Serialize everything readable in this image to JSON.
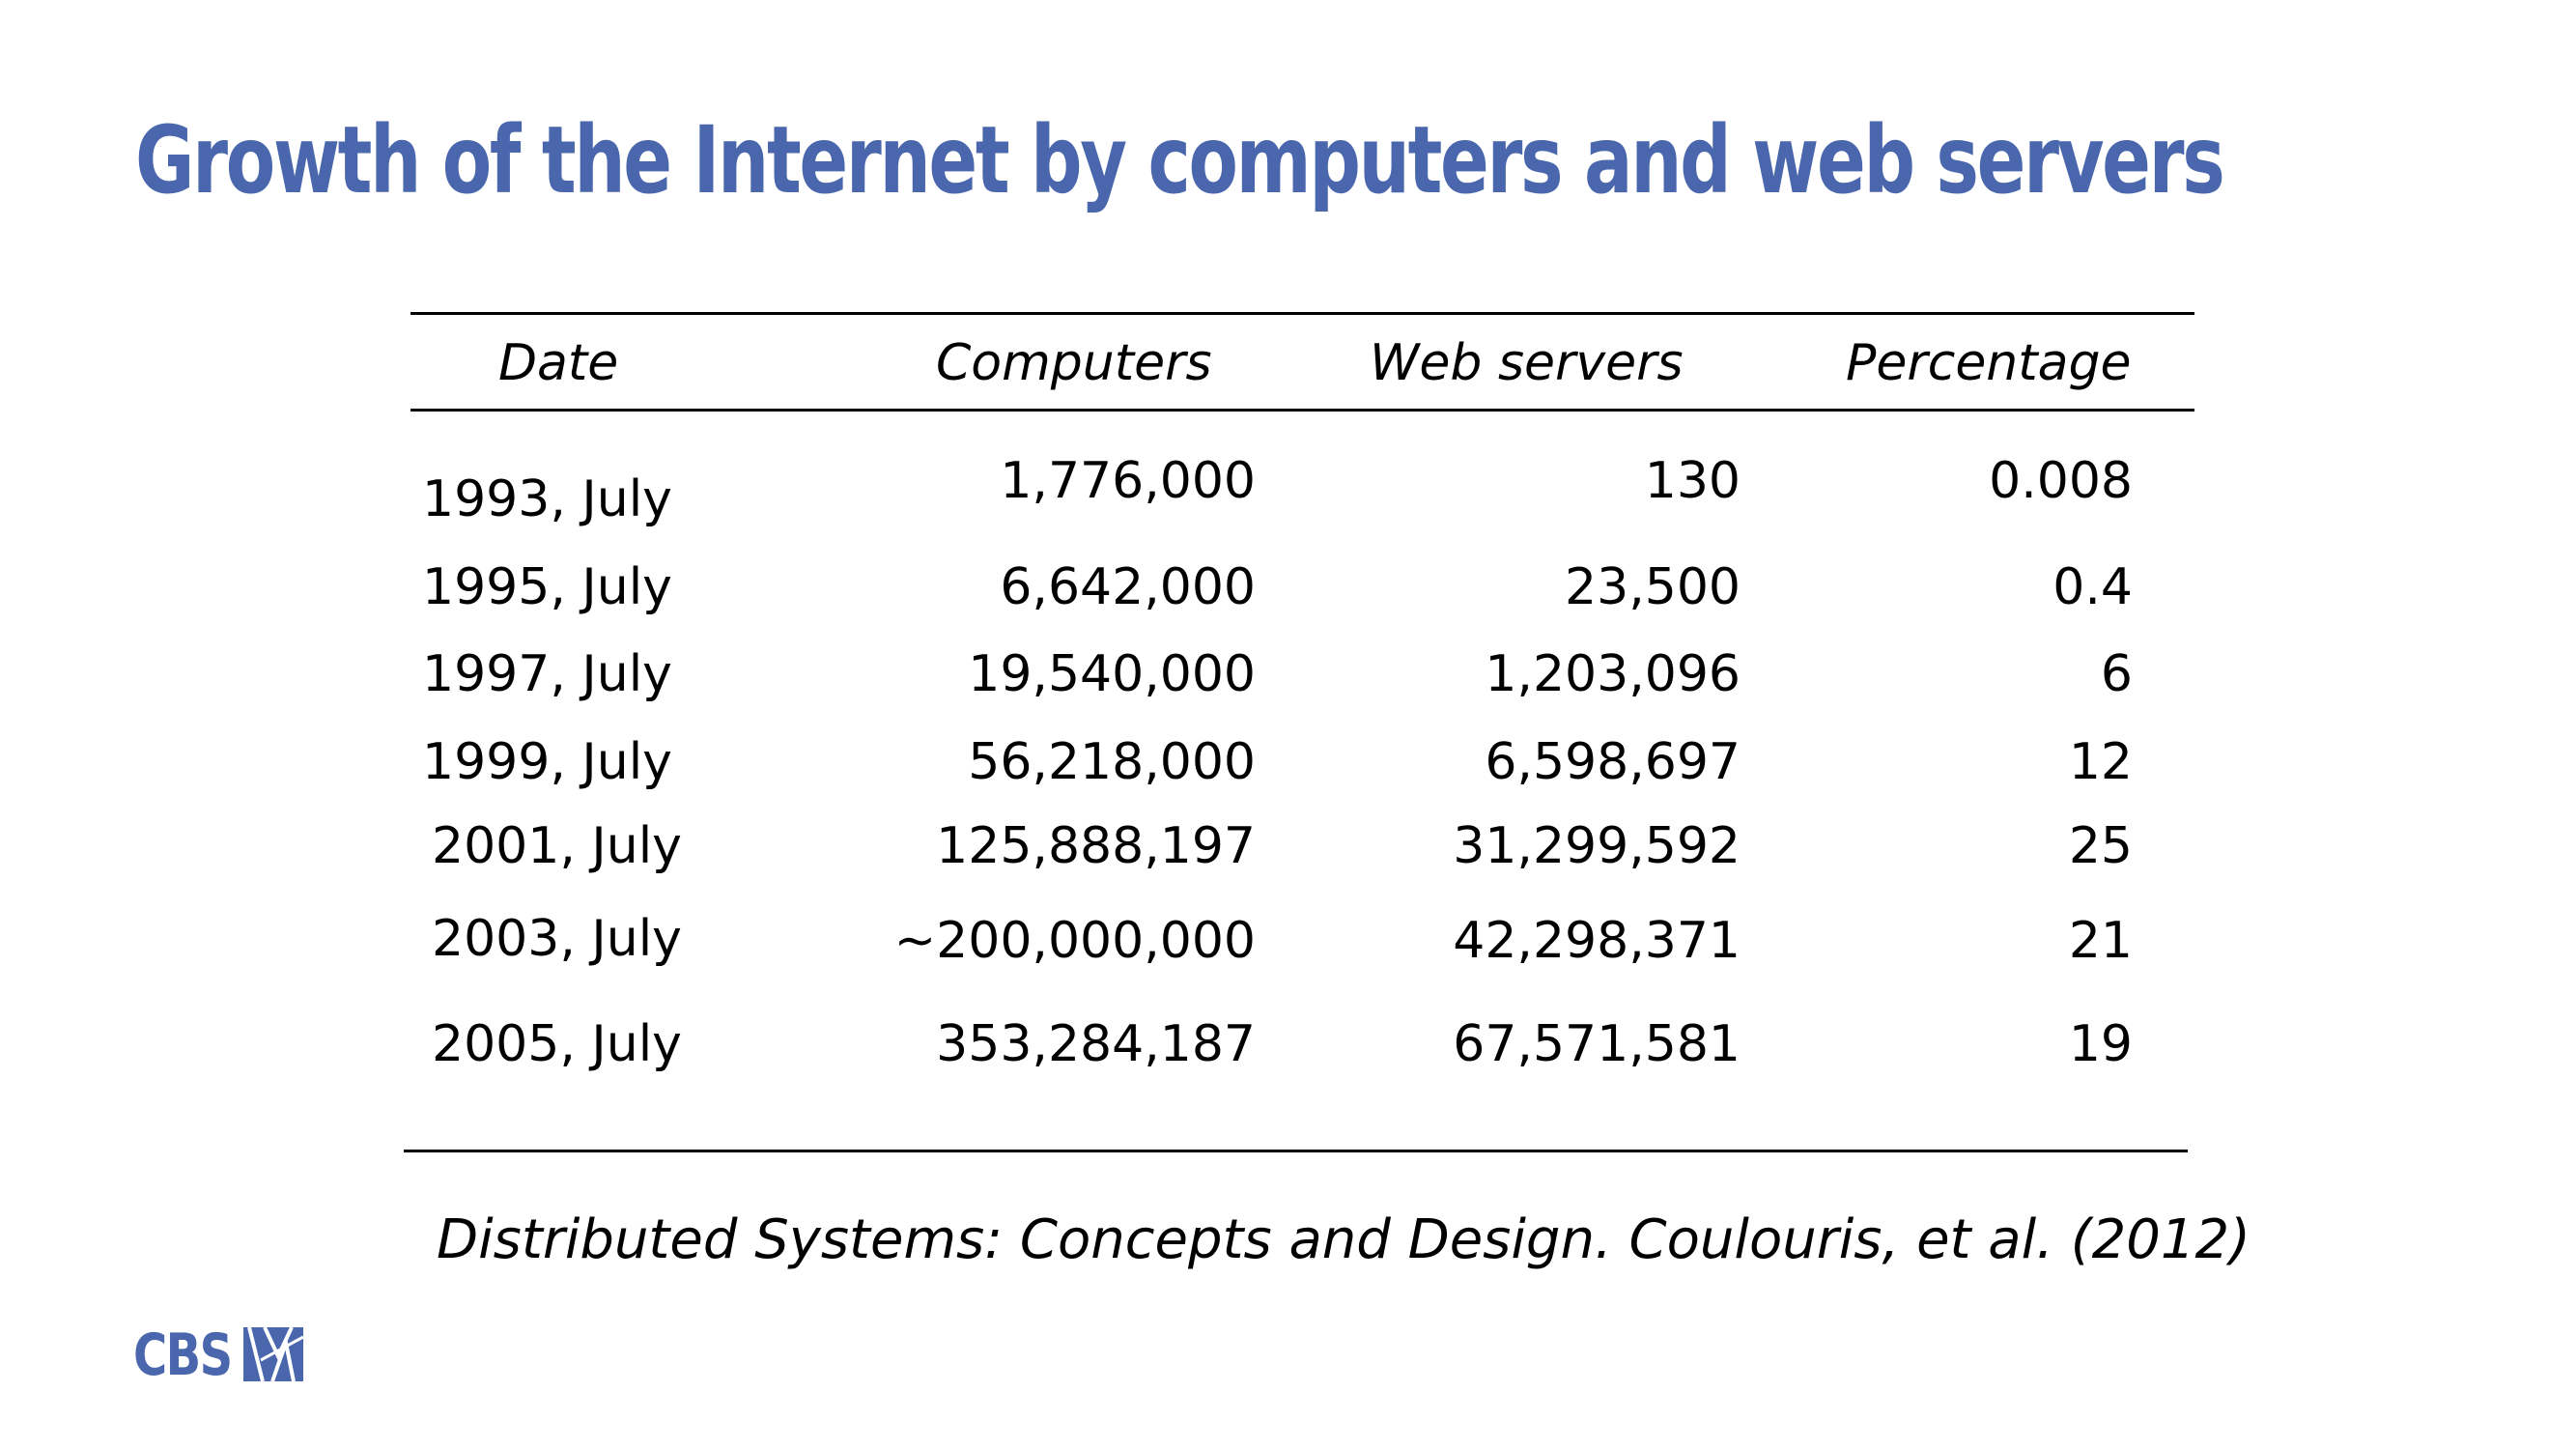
{
  "title": "Growth of the Internet by computers and web servers",
  "table": {
    "headers": {
      "date": "Date",
      "computers": "Computers",
      "web_servers": "Web servers",
      "percentage": "Percentage"
    },
    "rows": [
      {
        "date": "1993, July",
        "computers": "1,776,000",
        "web_servers": "130",
        "percentage": "0.008"
      },
      {
        "date": "1995, July",
        "computers": "6,642,000",
        "web_servers": "23,500",
        "percentage": "0.4"
      },
      {
        "date": "1997, July",
        "computers": "19,540,000",
        "web_servers": "1,203,096",
        "percentage": "6"
      },
      {
        "date": "1999, July",
        "computers": "56,218,000",
        "web_servers": "6,598,697",
        "percentage": "12"
      },
      {
        "date": "2001, July",
        "computers": "125,888,197",
        "web_servers": "31,299,592",
        "percentage": "25"
      },
      {
        "date": "2003, July",
        "computers": "~200,000,000",
        "web_servers": "42,298,371",
        "percentage": "21"
      },
      {
        "date": "2005, July",
        "computers": "353,284,187",
        "web_servers": "67,571,581",
        "percentage": "19"
      }
    ]
  },
  "citation": "Distributed Systems: Concepts and Design. Coulouris, et al. (2012)",
  "logo": {
    "text": "CBS",
    "icon": "cbs-logo-icon",
    "color": "#4a67ad"
  },
  "colors": {
    "title": "#4a67ad",
    "text": "#000000"
  }
}
